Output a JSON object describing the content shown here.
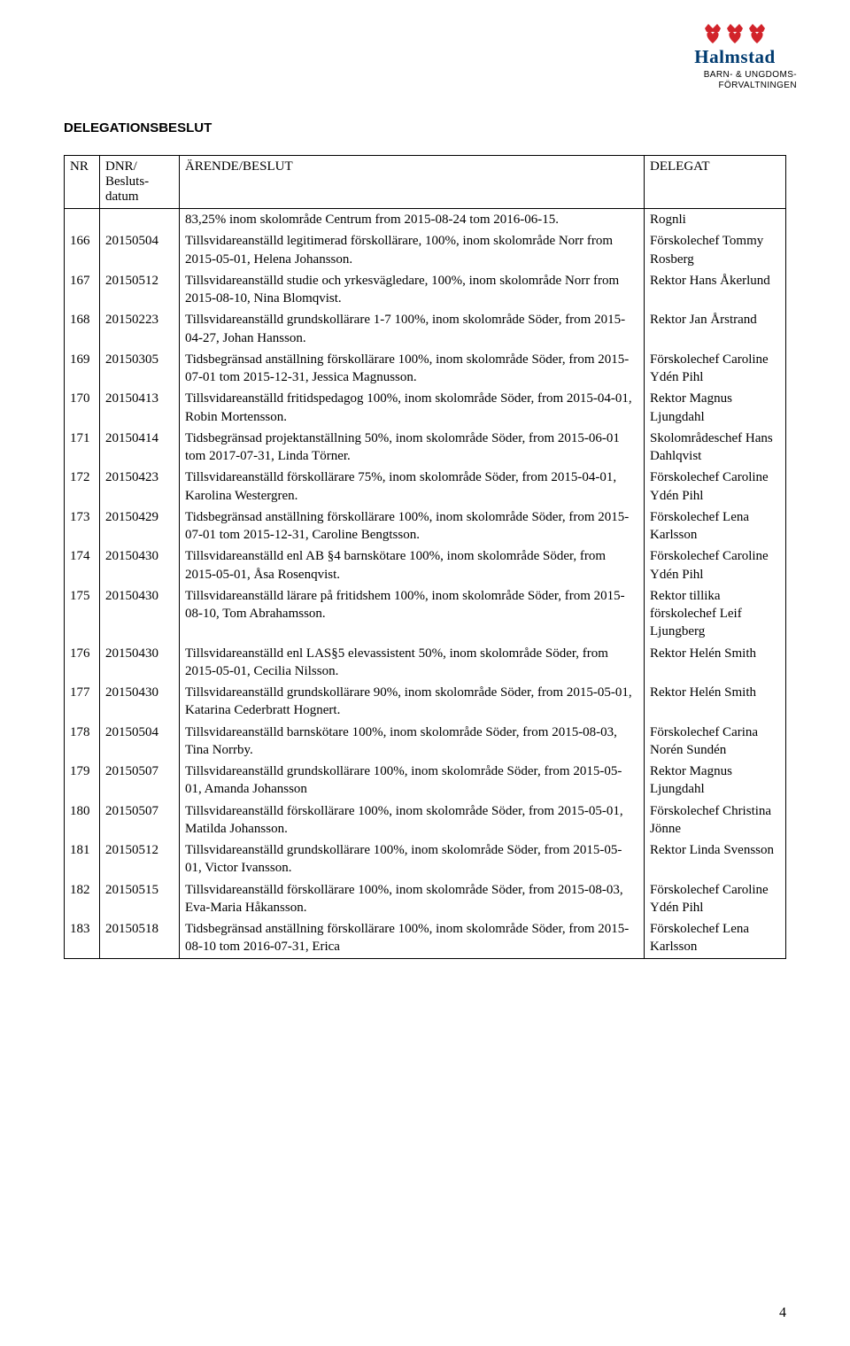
{
  "logo": {
    "name": "Halmstad",
    "subline1": "BARN- & UNGDOMS-",
    "subline2": "FÖRVALTNINGEN",
    "crown_red": "#d2232a",
    "heart_red": "#d2232a",
    "name_color": "#003b70"
  },
  "title": "DELEGATIONSBESLUT",
  "headers": {
    "nr": "NR",
    "dnr1": "DNR/",
    "dnr2": "Besluts-",
    "dnr3": "datum",
    "arende": "ÄRENDE/BESLUT",
    "delegat": "DELEGAT"
  },
  "leading_row": {
    "arende": "83,25% inom skolområde Centrum from 2015-08-24 tom 2016-06-15.",
    "delegat": "Rognli"
  },
  "rows": [
    {
      "nr": "166",
      "dnr": "20150504",
      "arende": "Tillsvidareanställd legitimerad förskollärare, 100%, inom skolområde Norr from 2015-05-01, Helena Johansson.",
      "delegat": "Förskolechef Tommy Rosberg"
    },
    {
      "nr": "167",
      "dnr": "20150512",
      "arende": "Tillsvidareanställd studie och yrkesvägledare, 100%, inom skolområde Norr from 2015-08-10, Nina Blomqvist.",
      "delegat": "Rektor Hans Åkerlund"
    },
    {
      "nr": "168",
      "dnr": "20150223",
      "arende": "Tillsvidareanställd grundskollärare 1-7 100%, inom skolområde Söder, from 2015-04-27, Johan Hansson.",
      "delegat": "Rektor Jan Årstrand"
    },
    {
      "nr": "169",
      "dnr": "20150305",
      "arende": "Tidsbegränsad anställning förskollärare 100%, inom skolområde Söder, from 2015-07-01 tom 2015-12-31, Jessica Magnusson.",
      "delegat": "Förskolechef Caroline Ydén Pihl"
    },
    {
      "nr": "170",
      "dnr": "20150413",
      "arende": "Tillsvidareanställd fritidspedagog 100%, inom skolområde Söder, from 2015-04-01, Robin Mortensson.",
      "delegat": "Rektor Magnus Ljungdahl"
    },
    {
      "nr": "171",
      "dnr": "20150414",
      "arende": "Tidsbegränsad projektanställning 50%, inom skolområde Söder, from 2015-06-01 tom  2017-07-31, Linda Törner.",
      "delegat": "Skolområdeschef Hans Dahlqvist"
    },
    {
      "nr": "172",
      "dnr": "20150423",
      "arende": "Tillsvidareanställd förskollärare 75%, inom skolområde Söder, from 2015-04-01, Karolina Westergren.",
      "delegat": "Förskolechef Caroline Ydén Pihl"
    },
    {
      "nr": "173",
      "dnr": "20150429",
      "arende": "Tidsbegränsad anställning förskollärare 100%, inom skolområde Söder, from 2015-07-01 tom 2015-12-31, Caroline Bengtsson.",
      "delegat": "Förskolechef Lena Karlsson"
    },
    {
      "nr": "174",
      "dnr": "20150430",
      "arende": "Tillsvidareanställd enl AB §4 barnskötare 100%, inom skolområde Söder, from 2015-05-01, Åsa Rosenqvist.",
      "delegat": "Förskolechef Caroline Ydén Pihl"
    },
    {
      "nr": "175",
      "dnr": "20150430",
      "arende": "Tillsvidareanställd lärare på fritidshem 100%, inom skolområde Söder, from 2015-08-10, Tom Abrahamsson.",
      "delegat": "Rektor tillika förskolechef Leif Ljungberg"
    },
    {
      "nr": "176",
      "dnr": "20150430",
      "arende": "Tillsvidareanställd enl LAS§5 elevassistent 50%, inom skolområde Söder, from 2015-05-01, Cecilia Nilsson.",
      "delegat": "Rektor Helén Smith"
    },
    {
      "nr": "177",
      "dnr": "20150430",
      "arende": "Tillsvidareanställd grundskollärare 90%, inom skolområde Söder, from 2015-05-01, Katarina Cederbratt Hognert.",
      "delegat": "Rektor Helén Smith"
    },
    {
      "nr": "178",
      "dnr": "20150504",
      "arende": "Tillsvidareanställd barnskötare 100%, inom skolområde Söder, from 2015-08-03, Tina Norrby.",
      "delegat": "Förskolechef Carina Norén Sundén"
    },
    {
      "nr": "179",
      "dnr": "20150507",
      "arende": "Tillsvidareanställd grundskollärare 100%, inom skolområde Söder, from 2015-05-01, Amanda Johansson",
      "delegat": "Rektor Magnus Ljungdahl"
    },
    {
      "nr": "180",
      "dnr": "20150507",
      "arende": "Tillsvidareanställd förskollärare 100%, inom skolområde Söder, from 2015-05-01, Matilda Johansson.",
      "delegat": "Förskolechef Christina Jönne"
    },
    {
      "nr": "181",
      "dnr": "20150512",
      "arende": "Tillsvidareanställd grundskollärare 100%, inom skolområde Söder, from 2015-05-01, Victor Ivansson.",
      "delegat": "Rektor Linda Svensson"
    },
    {
      "nr": "182",
      "dnr": "20150515",
      "arende": "Tillsvidareanställd förskollärare 100%, inom skolområde Söder, from 2015-08-03, Eva-Maria Håkansson.",
      "delegat": "Förskolechef Caroline Ydén Pihl"
    },
    {
      "nr": "183",
      "dnr": "20150518",
      "arende": "Tidsbegränsad anställning förskollärare 100%, inom skolområde Söder, from 2015-08-10 tom  2016-07-31, Erica",
      "delegat": "Förskolechef Lena Karlsson"
    }
  ],
  "page_number": "4"
}
